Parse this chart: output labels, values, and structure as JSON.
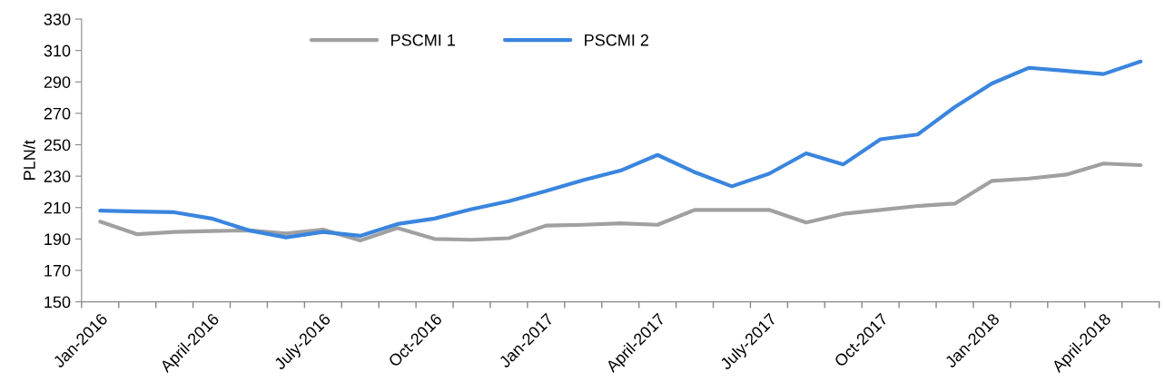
{
  "chart_data": {
    "type": "line",
    "ylabel": "PLN/t",
    "categories": [
      "Jan-2016",
      null,
      null,
      "April-2016",
      null,
      null,
      "July-2016",
      null,
      null,
      "Oct-2016",
      null,
      null,
      "Jan-2017",
      null,
      null,
      "April-2017",
      null,
      null,
      "July-2017",
      null,
      null,
      "Oct-2017",
      null,
      null,
      "Jan-2018",
      null,
      null,
      "April-2018",
      null
    ],
    "series": [
      {
        "name": "PSCMI 1",
        "color": "#a0a0a0",
        "values": [
          201,
          193,
          194.5,
          195,
          195.5,
          193.5,
          196,
          189,
          197,
          190,
          189.5,
          190.5,
          198.5,
          199,
          200,
          199,
          208.5,
          208.5,
          208.5,
          200.5,
          206,
          208.5,
          211,
          212.5,
          227,
          228.5,
          231,
          238,
          237
        ]
      },
      {
        "name": "PSCMI 2",
        "color": "#3a85de",
        "values": [
          208,
          207.5,
          207,
          203,
          195.5,
          191,
          194.5,
          192,
          199.5,
          203,
          209,
          214,
          220.5,
          227.5,
          233.5,
          243.5,
          232.5,
          223.5,
          231.5,
          244.5,
          237.5,
          253.5,
          256.5,
          274,
          289,
          299,
          297,
          295,
          303
        ]
      }
    ],
    "ylim": [
      150,
      330
    ],
    "yticks": [
      150,
      170,
      190,
      210,
      230,
      250,
      270,
      290,
      310,
      330
    ],
    "grid": false,
    "legend": "top",
    "marker": "none",
    "line_style": "solid"
  }
}
